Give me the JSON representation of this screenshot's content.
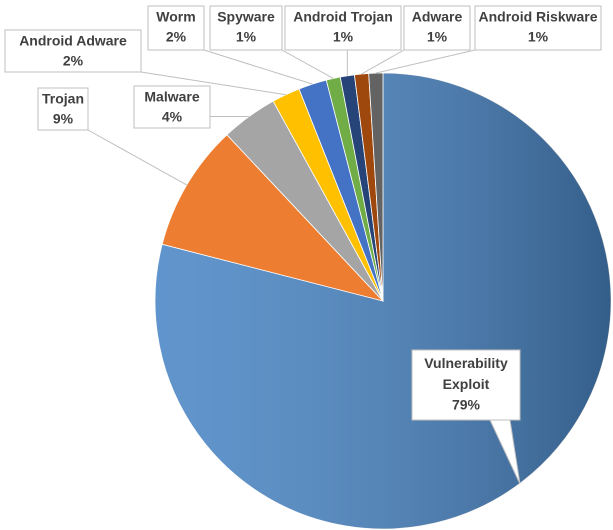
{
  "chart_data": {
    "type": "pie",
    "categories": [
      "Vulnerability Exploit",
      "Trojan",
      "Malware",
      "Android Adware",
      "Worm",
      "Spyware",
      "Android Trojan",
      "Adware",
      "Android Riskware"
    ],
    "values": [
      79,
      9,
      4,
      2,
      2,
      1,
      1,
      1,
      1
    ],
    "value_labels": [
      "79%",
      "9%",
      "4%",
      "2%",
      "2%",
      "1%",
      "1%",
      "1%",
      "1%"
    ],
    "colors": [
      "#4a86c5",
      "#ed7d31",
      "#a5a5a5",
      "#ffc000",
      "#4472c4",
      "#70ad47",
      "#264478",
      "#9e480e",
      "#636363"
    ]
  }
}
